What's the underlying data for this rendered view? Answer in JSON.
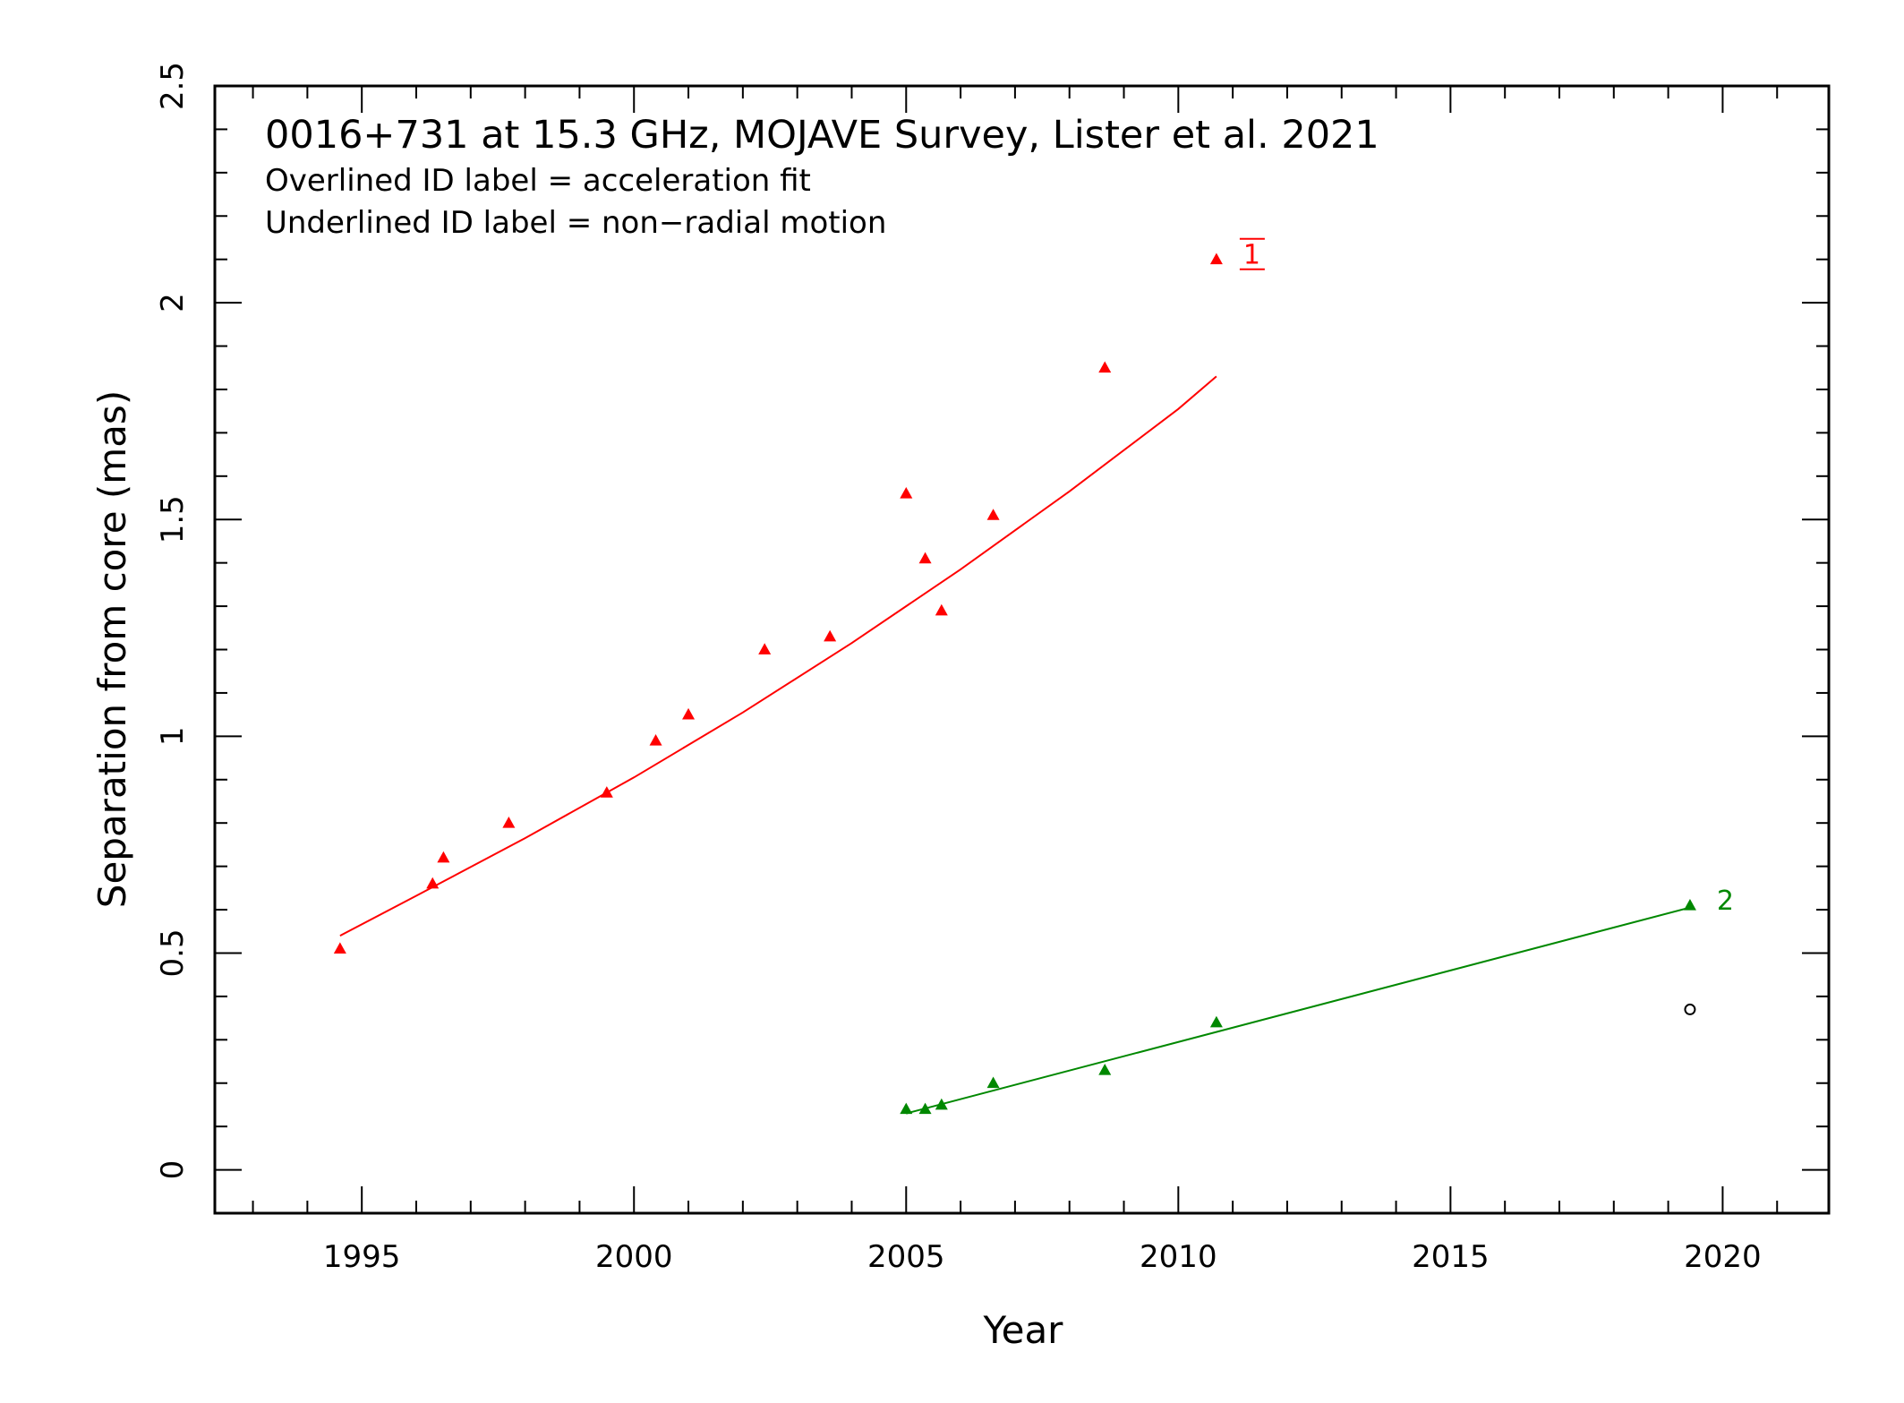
{
  "chart_data": {
    "type": "scatter",
    "title": "0016+731 at 15.3 GHz, MOJAVE Survey, Lister et al. 2021",
    "subtitle_lines": [
      "Overlined ID label = acceleration fit",
      "Underlined ID label = non−radial motion"
    ],
    "xlabel": "Year",
    "ylabel": "Separation from core (mas)",
    "xlim": [
      1992.3,
      2021.95
    ],
    "ylim": [
      -0.1,
      2.5
    ],
    "xticks": [
      1995,
      2000,
      2005,
      2010,
      2015,
      2020
    ],
    "xtick_labels": [
      "1995",
      "2000",
      "2005",
      "2010",
      "2015",
      "2020"
    ],
    "yticks": [
      0,
      0.5,
      1,
      1.5,
      2,
      2.5
    ],
    "ytick_labels": [
      "0",
      "0.5",
      "1",
      "1.5",
      "2",
      "2.5"
    ],
    "grid": false,
    "series": [
      {
        "id": "1",
        "label": "1",
        "label_overlined": true,
        "label_underlined": true,
        "color": "#ff0000",
        "marker": "triangle",
        "x": [
          1994.6,
          1996.3,
          1996.5,
          1997.7,
          1999.5,
          2000.4,
          2001.0,
          2002.4,
          2003.6,
          2005.0,
          2005.35,
          2005.65,
          2006.6,
          2008.65,
          2010.7
        ],
        "y": [
          0.51,
          0.66,
          0.72,
          0.8,
          0.87,
          0.99,
          1.05,
          1.2,
          1.23,
          1.56,
          1.41,
          1.29,
          1.51,
          1.85,
          2.1
        ],
        "fit": {
          "model": "quadratic",
          "x": [
            1994.6,
            1996,
            1998,
            2000,
            2002,
            2004,
            2006,
            2008,
            2010,
            2010.7
          ],
          "y": [
            0.54,
            0.632,
            0.765,
            0.905,
            1.055,
            1.215,
            1.385,
            1.565,
            1.755,
            1.83
          ]
        }
      },
      {
        "id": "2",
        "label": "2",
        "label_overlined": false,
        "label_underlined": false,
        "color": "#008800",
        "marker": "triangle",
        "x": [
          2005.0,
          2005.35,
          2005.65,
          2006.6,
          2008.65,
          2010.7,
          2019.4
        ],
        "y": [
          0.14,
          0.14,
          0.15,
          0.2,
          0.23,
          0.34,
          0.61
        ],
        "fit": {
          "model": "linear",
          "x": [
            2005.0,
            2019.4
          ],
          "y": [
            0.13,
            0.605
          ]
        }
      },
      {
        "id": "unassigned",
        "color": "#000000",
        "marker": "open-circle",
        "x": [
          2019.4
        ],
        "y": [
          0.37
        ]
      }
    ]
  }
}
